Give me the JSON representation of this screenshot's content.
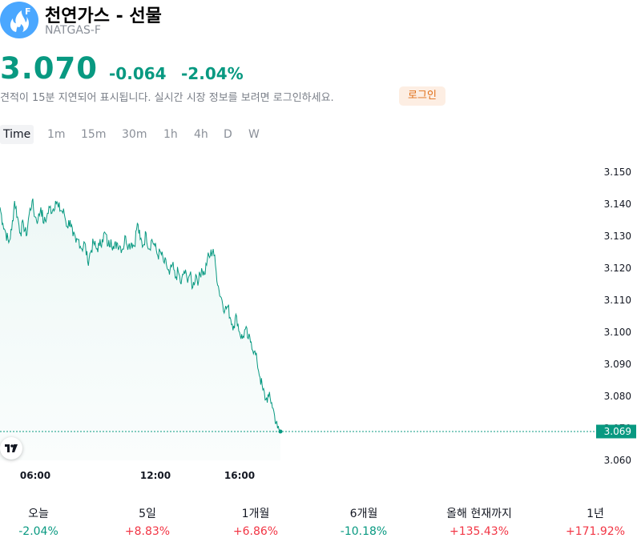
{
  "header": {
    "title": "천연가스 - 선물",
    "symbol": "NATGAS-F",
    "logo_letter": "F",
    "logo_icon": "flame-icon"
  },
  "quote": {
    "price": "3.070",
    "change_abs": "-0.064",
    "change_pct": "-2.04%",
    "delay_note": "견적이 15분 지연되어 표시됩니다. 실시간 시장 정보를 보려면 로그인하세요.",
    "login_label": "로그인"
  },
  "tabs": [
    {
      "label": "Time",
      "active": true
    },
    {
      "label": "1m"
    },
    {
      "label": "15m"
    },
    {
      "label": "30m"
    },
    {
      "label": "1h"
    },
    {
      "label": "4h"
    },
    {
      "label": "D"
    },
    {
      "label": "W"
    }
  ],
  "colors": {
    "up": "#089981",
    "down": "#f23645",
    "accent": "#e0701a",
    "logo": "#4aa7ff"
  },
  "chart_data": {
    "type": "area",
    "y_ticks": [
      "3.150",
      "3.140",
      "3.130",
      "3.120",
      "3.110",
      "3.100",
      "3.090",
      "3.080",
      "3.070",
      "3.060"
    ],
    "x_ticks": [
      "06:00",
      "12:00",
      "16:00"
    ],
    "last_value_label": "3.069",
    "ylim": [
      3.06,
      3.15
    ],
    "series": [
      {
        "values": [
          3.139,
          3.134,
          3.131,
          3.128,
          3.132,
          3.141,
          3.136,
          3.131,
          3.134,
          3.13,
          3.137,
          3.141,
          3.136,
          3.135,
          3.139,
          3.134,
          3.136,
          3.139,
          3.138,
          3.141,
          3.139,
          3.138,
          3.137,
          3.133,
          3.135,
          3.13,
          3.128,
          3.129,
          3.126,
          3.128,
          3.122,
          3.125,
          3.128,
          3.126,
          3.127,
          3.129,
          3.131,
          3.127,
          3.129,
          3.126,
          3.128,
          3.127,
          3.126,
          3.13,
          3.127,
          3.128,
          3.127,
          3.134,
          3.129,
          3.127,
          3.131,
          3.126,
          3.129,
          3.127,
          3.124,
          3.125,
          3.122,
          3.121,
          3.118,
          3.121,
          3.117,
          3.119,
          3.115,
          3.119,
          3.117,
          3.118,
          3.114,
          3.118,
          3.116,
          3.12,
          3.118,
          3.123,
          3.124,
          3.126,
          3.119,
          3.113,
          3.11,
          3.107,
          3.108,
          3.104,
          3.102,
          3.105,
          3.1,
          3.098,
          3.101,
          3.098,
          3.097,
          3.094,
          3.091,
          3.086,
          3.082,
          3.079,
          3.08,
          3.078,
          3.074,
          3.07,
          3.069
        ]
      }
    ]
  },
  "performance": [
    {
      "label": "오늘",
      "value": "-2.04%",
      "direction": "down-green"
    },
    {
      "label": "5일",
      "value": "+8.83%",
      "direction": "up-red"
    },
    {
      "label": "1개월",
      "value": "+6.86%",
      "direction": "up-red"
    },
    {
      "label": "6개월",
      "value": "-10.18%",
      "direction": "down-green"
    },
    {
      "label": "올해 현재까지",
      "value": "+135.43%",
      "direction": "up-red"
    },
    {
      "label": "1년",
      "value": "+171.92%",
      "direction": "up-red"
    }
  ]
}
